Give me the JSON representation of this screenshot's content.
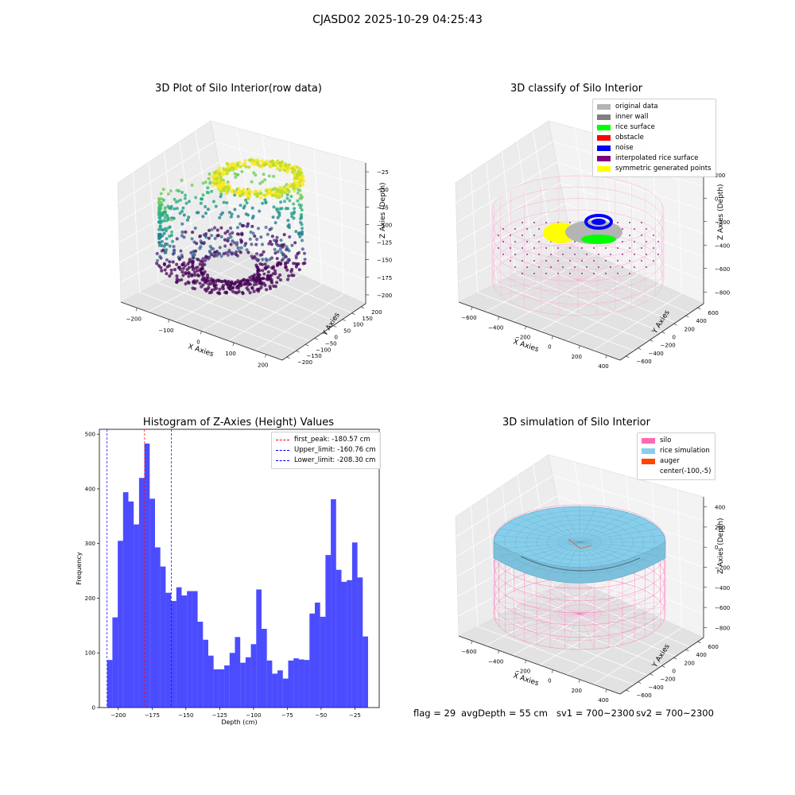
{
  "suptitle": "CJASD02 2025-10-29 04:25:43",
  "panels": {
    "raw": {
      "title": "3D Plot of Silo Interior(row data)",
      "x_label": "X Axies",
      "y_label": "Y Axies",
      "z_label": "Z Axies (Depth)",
      "x_ticks": [
        "−200",
        "−100",
        "0",
        "100",
        "200"
      ],
      "y_ticks": [
        "200",
        "150",
        "100",
        "50",
        "0",
        "−50",
        "−100",
        "−150",
        "−200"
      ],
      "z_ticks": [
        "−25",
        "−50",
        "−75",
        "−100",
        "−125",
        "−150",
        "−175",
        "−200"
      ]
    },
    "classify": {
      "title": "3D classify of Silo Interior",
      "x_label": "X Axies",
      "y_label": "Y Axies",
      "z_label": "Z Axies (Depth)",
      "x_ticks": [
        "−600",
        "−400",
        "−200",
        "0",
        "200",
        "400"
      ],
      "y_ticks": [
        "600",
        "400",
        "200",
        "0",
        "−200",
        "−400",
        "−600"
      ],
      "z_ticks": [
        "200",
        "0",
        "−200",
        "−400",
        "−600",
        "−800"
      ],
      "legend": [
        {
          "label": "original data",
          "color": "#b4b4b4"
        },
        {
          "label": "inner wall",
          "color": "#808080"
        },
        {
          "label": "rice surface",
          "color": "#00ff00"
        },
        {
          "label": "obstacle",
          "color": "#ff0000"
        },
        {
          "label": "noise",
          "color": "#0000ff"
        },
        {
          "label": "interpolated rice surface",
          "color": "#800080"
        },
        {
          "label": "symmetric generated points",
          "color": "#ffff00"
        }
      ]
    },
    "simulation": {
      "title": "3D simulation of Silo Interior",
      "x_label": "X Axies",
      "y_label": "Y Axies",
      "z_label": "Z Axies (Depth)",
      "x_ticks": [
        "−600",
        "−400",
        "−200",
        "0",
        "200",
        "400"
      ],
      "y_ticks": [
        "600",
        "400",
        "200",
        "0",
        "−200",
        "−400",
        "−600"
      ],
      "z_ticks": [
        "400",
        "200",
        "0",
        "−200",
        "−400",
        "−600",
        "−800"
      ],
      "legend": [
        {
          "label": "silo",
          "color": "#ff69b4"
        },
        {
          "label": "rice simulation",
          "color": "#87ceeb"
        },
        {
          "label": "auger",
          "color": "#ff4500"
        },
        {
          "label": "center(-100,-5)",
          "color": "none"
        }
      ]
    }
  },
  "chart_data": {
    "type": "bar",
    "title": "Histogram of Z-Axies (Height) Values",
    "xlabel": "Depth (cm)",
    "ylabel": "Frequency",
    "xlim": [
      -214,
      -7
    ],
    "ylim": [
      0,
      509
    ],
    "x_ticks": [
      -200,
      -175,
      -150,
      -125,
      -100,
      -75,
      -50,
      -25
    ],
    "x_tick_labels": [
      "−200",
      "−175",
      "−150",
      "−125",
      "−100",
      "−75",
      "−50",
      "−25"
    ],
    "y_ticks": [
      0,
      100,
      200,
      300,
      400,
      500
    ],
    "y_tick_labels": [
      "0",
      "100",
      "200",
      "300",
      "400",
      "500"
    ],
    "bar_color": "#0000ff",
    "bin_start": -208.3,
    "bin_width": 3.94,
    "values": [
      87,
      165,
      305,
      394,
      377,
      335,
      420,
      483,
      382,
      293,
      258,
      210,
      195,
      220,
      205,
      213,
      213,
      157,
      124,
      95,
      70,
      70,
      77,
      100,
      129,
      82,
      92,
      116,
      216,
      144,
      86,
      62,
      68,
      53,
      86,
      90,
      88,
      87,
      172,
      192,
      166,
      279,
      381,
      252,
      230,
      233,
      302,
      238,
      130
    ],
    "vlines": [
      {
        "name": "first_peak",
        "label": "first_peak: -180.57 cm",
        "x": -180.57,
        "color": "#ff0000"
      },
      {
        "name": "upper_limit",
        "label": "Upper_limit: -160.76 cm",
        "x": -160.76,
        "color": "#0000ff"
      },
      {
        "name": "lower_limit",
        "label": "Lower_limit: -208.30 cm",
        "x": -208.3,
        "color": "#0000ff"
      }
    ],
    "legend_position": "top-right"
  },
  "status": {
    "flag": "flag = 29",
    "avg_depth": "avgDepth = 55 cm",
    "sv1": "sv1 = 700~2300",
    "sv2": "sv2 = 700~2300"
  }
}
